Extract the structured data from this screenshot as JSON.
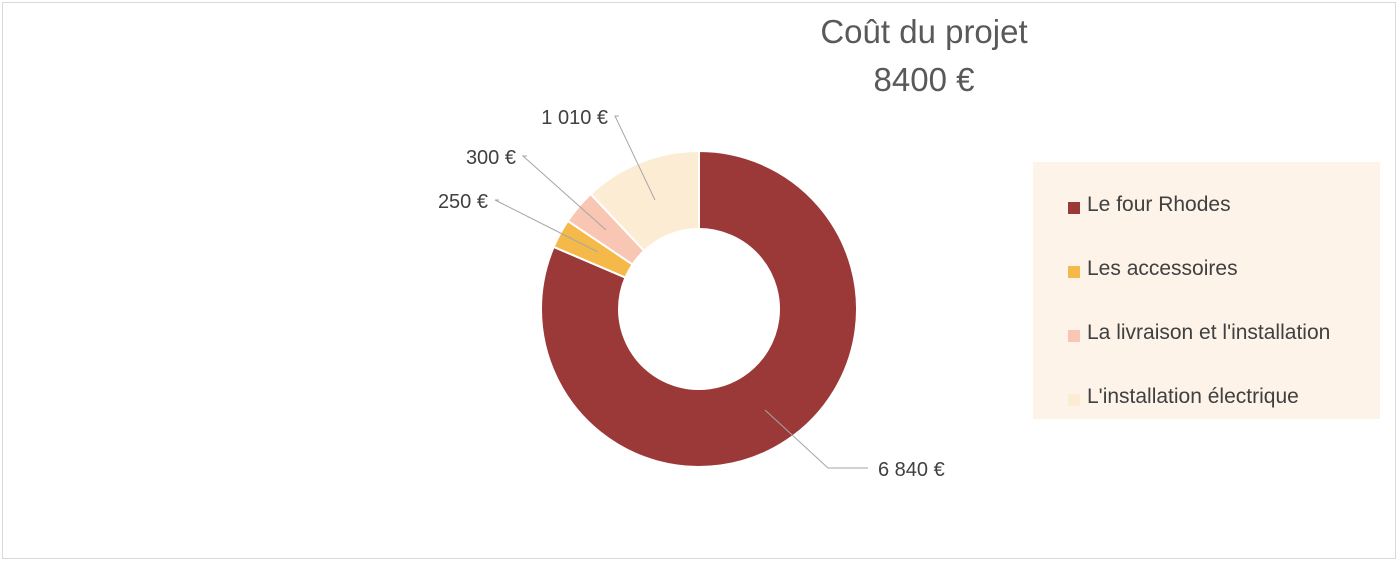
{
  "chart_data": {
    "type": "pie",
    "variant": "donut",
    "title": "Coût du projet",
    "subtitle": "8400 €",
    "categories": [
      "Le four Rhodes",
      "Les accessoires",
      "La livraison et l'installation",
      "L'installation électrique"
    ],
    "values": [
      6840,
      250,
      300,
      1010
    ],
    "data_labels": [
      "6 840 €",
      "250 €",
      "300 €",
      "1 010 €"
    ],
    "colors": [
      "#9b3838",
      "#f5b94a",
      "#f8c6b3",
      "#fdecd4"
    ],
    "legend_position": "right"
  }
}
